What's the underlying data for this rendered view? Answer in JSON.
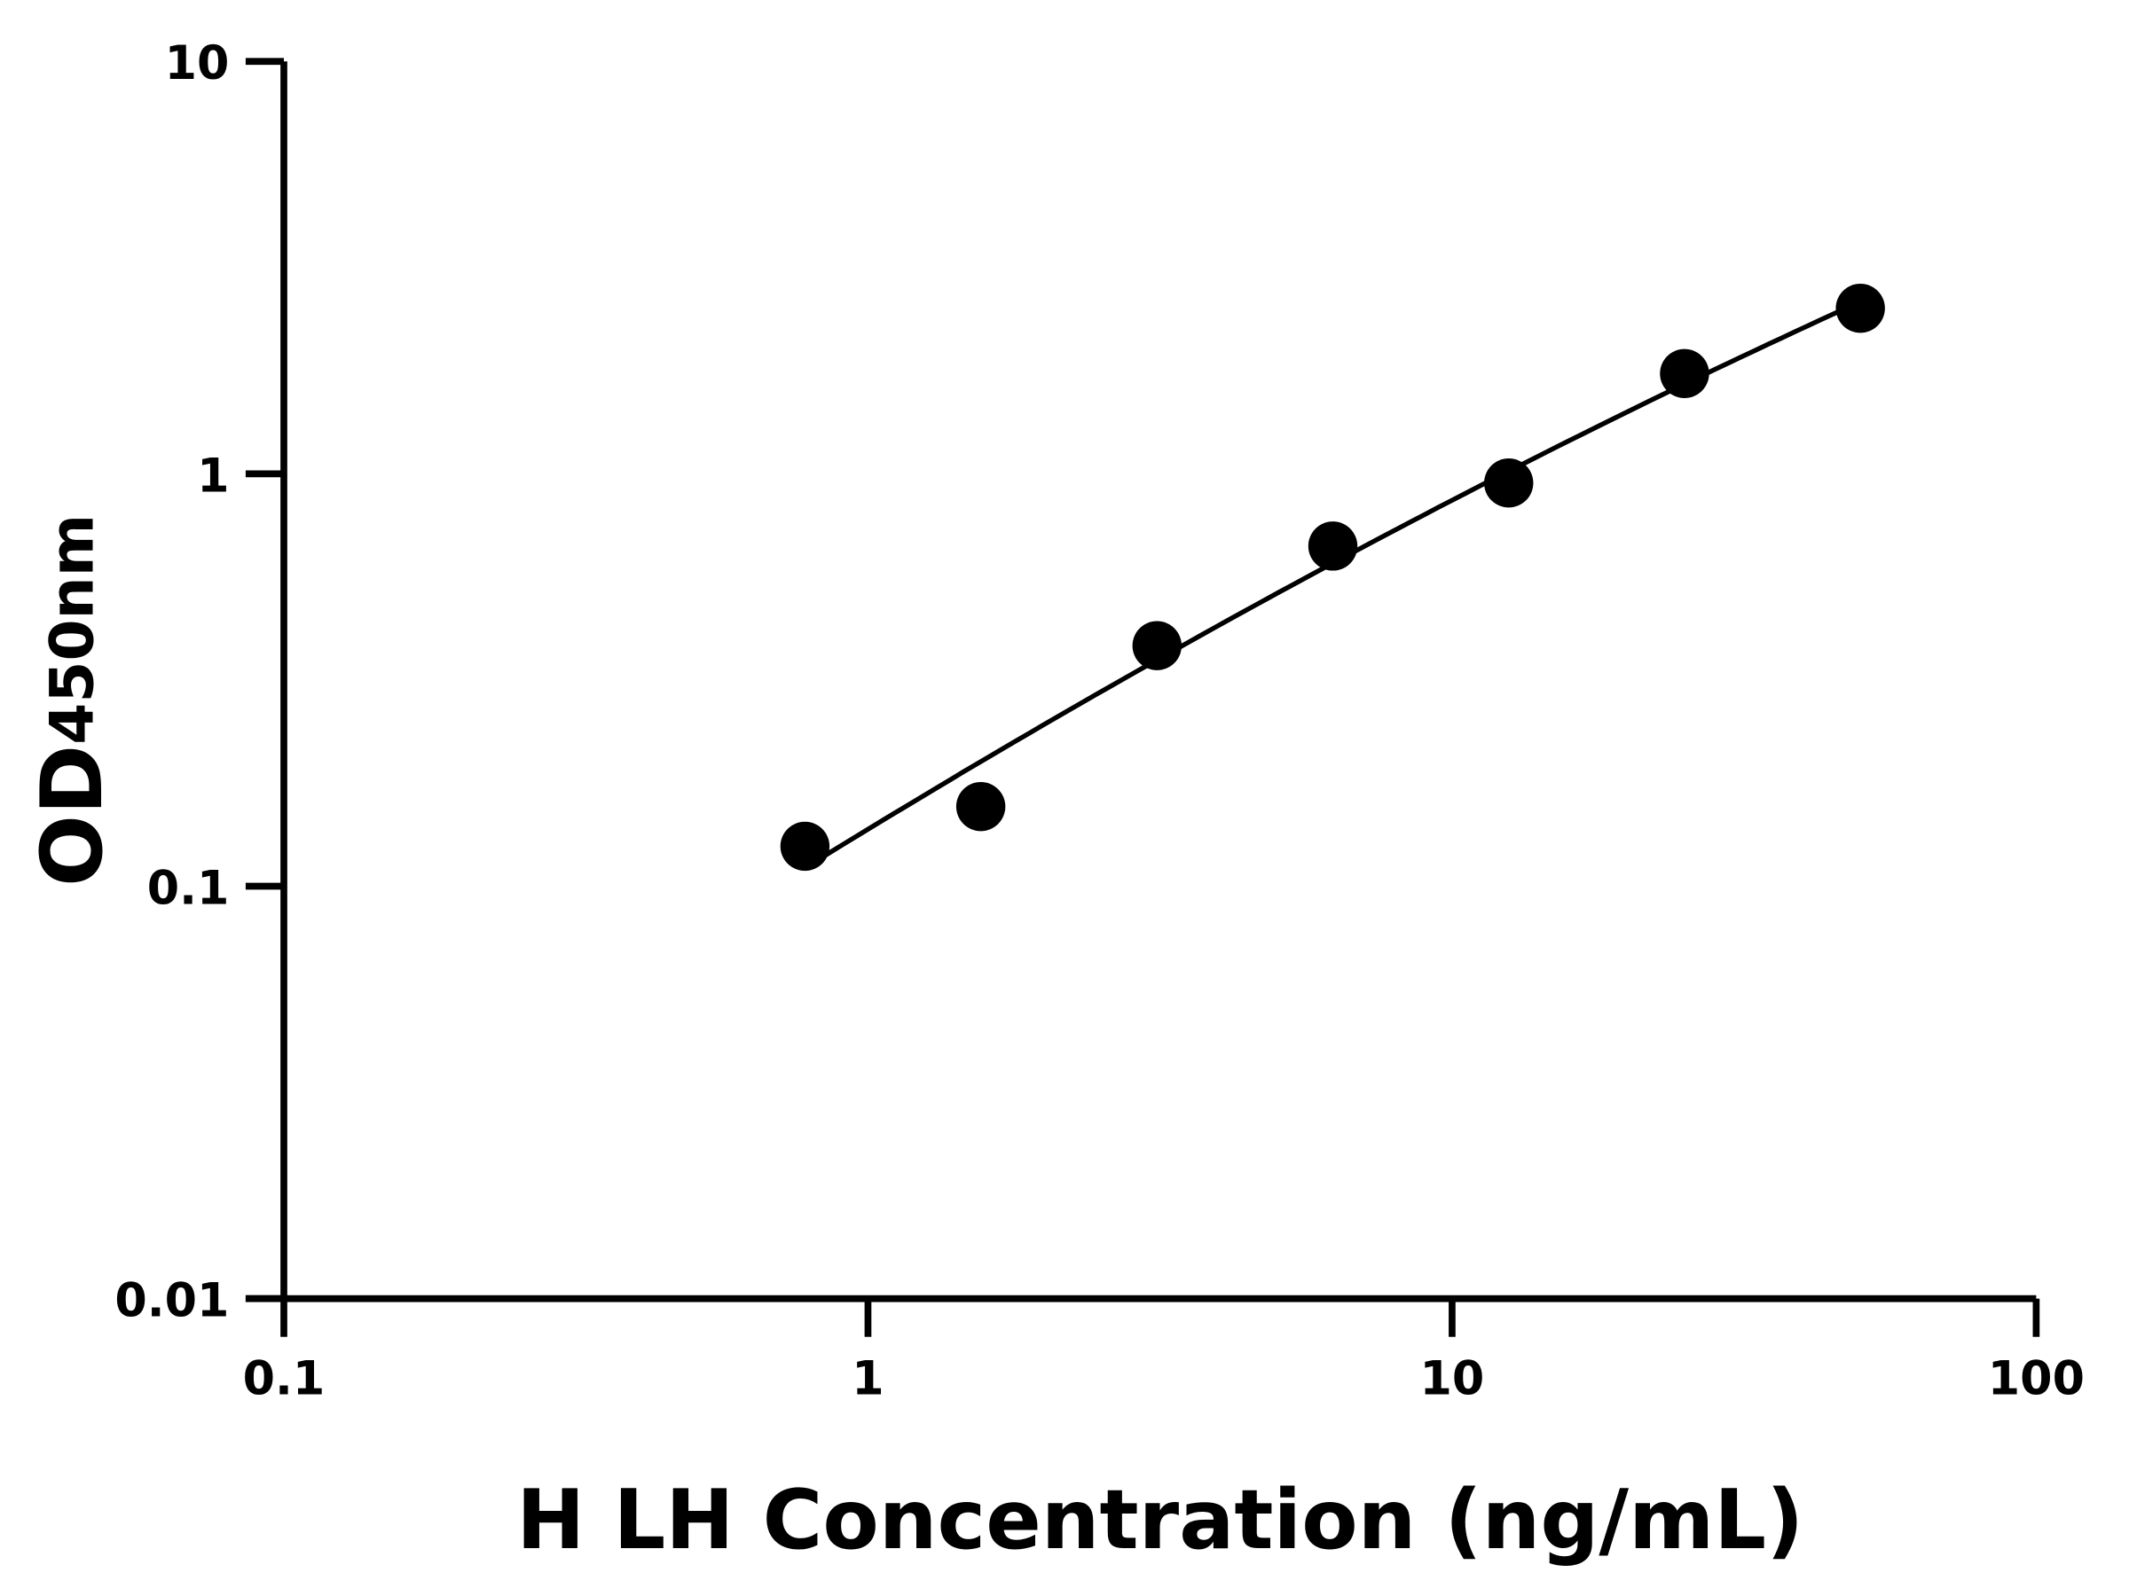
{
  "chart_data": {
    "type": "scatter",
    "title": "",
    "xlabel": "H LH Concentration (ng/mL)",
    "ylabel": {
      "main": "OD",
      "subscript": "450nm"
    },
    "x_scale": "log",
    "y_scale": "log",
    "xlim": [
      0.1,
      100
    ],
    "ylim": [
      0.01,
      10
    ],
    "x_ticks": [
      0.1,
      1,
      10,
      100
    ],
    "x_tick_labels": [
      "0.1",
      "1",
      "10",
      "100"
    ],
    "y_ticks": [
      0.01,
      0.1,
      1,
      10
    ],
    "y_tick_labels": [
      "0.01",
      "0.1",
      "1",
      "10"
    ],
    "grid": false,
    "legend": "none",
    "series": [
      {
        "x": [
          0.78,
          1.56,
          3.125,
          6.25,
          12.5,
          25,
          50
        ],
        "y": [
          0.125,
          0.156,
          0.383,
          0.668,
          0.95,
          1.75,
          2.52
        ],
        "marker": "filled-circle",
        "fit_line": true,
        "color": "#000000"
      }
    ]
  }
}
